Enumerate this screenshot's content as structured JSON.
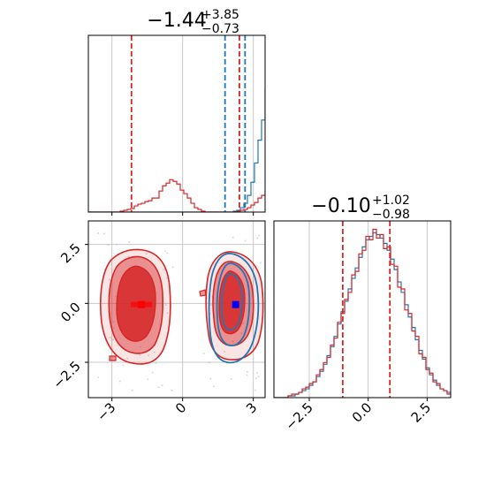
{
  "colors": {
    "blue": "#1f77b4",
    "red": "#d62728",
    "grid": "#c8c8c8",
    "axis": "#000000",
    "blue_marker": "#0000ff",
    "red_marker": "#ff0000"
  },
  "chart_data": [
    {
      "panel": "hist-x",
      "type": "step-histogram",
      "title_value": "−1.44",
      "title_plus": "+3.85",
      "title_minus": "−0.73",
      "xlim": [
        -4.0,
        3.5
      ],
      "grid": true,
      "bin_start": -4.0,
      "bin_width": 0.15,
      "series": [
        {
          "color": "blue",
          "counts": [
            0,
            0,
            0,
            0,
            0,
            0,
            0,
            0,
            0,
            0,
            0,
            0,
            0,
            0,
            0,
            0,
            0,
            0,
            0,
            0,
            0,
            0,
            0,
            0,
            0,
            0,
            0,
            0,
            0,
            0,
            0,
            0,
            0,
            0,
            0,
            0,
            0,
            0,
            0,
            0,
            0,
            1,
            2,
            5,
            10,
            19,
            34,
            56,
            82,
            105,
            140,
            175,
            192,
            168,
            130,
            92,
            60,
            34,
            14,
            6,
            2,
            1,
            0,
            0,
            0,
            0,
            0,
            0,
            0,
            0,
            0,
            0,
            0,
            0,
            0
          ]
        },
        {
          "color": "red",
          "counts": [
            0,
            0,
            0,
            0,
            0,
            0,
            0,
            0,
            0,
            1,
            2,
            3,
            4,
            7,
            9,
            10,
            12,
            13,
            16,
            16,
            24,
            30,
            33,
            37,
            35,
            32,
            25,
            21,
            16,
            10,
            5,
            3,
            1,
            0,
            0,
            0,
            0,
            0,
            0,
            0,
            0,
            0,
            1,
            2,
            3,
            5,
            8,
            11,
            16,
            19,
            24,
            26,
            27,
            25,
            21,
            16,
            11,
            7,
            4,
            2,
            1,
            0,
            0,
            0,
            0,
            0,
            0,
            0,
            0,
            0,
            0,
            0,
            0,
            0,
            0
          ]
        }
      ],
      "vlines": [
        {
          "color": "red",
          "x": -2.17
        },
        {
          "color": "red",
          "x": 2.41
        },
        {
          "color": "blue",
          "x": 1.8
        },
        {
          "color": "blue",
          "x": 2.65
        }
      ]
    },
    {
      "panel": "contour-xy",
      "type": "contour",
      "xlim": [
        -4.0,
        3.5
      ],
      "ylim": [
        -4.0,
        3.5
      ],
      "xticks": [
        -3,
        0,
        3
      ],
      "xtick_labels": [
        "−3",
        "0",
        "3"
      ],
      "yticks": [
        2.5,
        0.0,
        -2.5
      ],
      "ytick_labels": [
        "2.5",
        "0.0",
        "−2.5"
      ],
      "grid": true,
      "markers": [
        {
          "color": "red_marker",
          "x": -1.75,
          "y": -0.05
        },
        {
          "color": "blue_marker",
          "x": 2.25,
          "y": -0.05
        }
      ]
    },
    {
      "panel": "hist-y",
      "type": "step-histogram",
      "title_value": "−0.10",
      "title_plus": "+1.02",
      "title_minus": "−0.98",
      "xlim": [
        -4.0,
        3.5
      ],
      "xticks": [
        -2.5,
        0.0,
        2.5
      ],
      "xtick_labels": [
        "−2.5",
        "0.0",
        "2.5"
      ],
      "grid": true,
      "bin_start": -4.0,
      "bin_width": 0.15,
      "series": [
        {
          "color": "blue",
          "counts": [
            0,
            0,
            0,
            0,
            1,
            1,
            2,
            3,
            4,
            5,
            7,
            9,
            12,
            15,
            19,
            24,
            29,
            35,
            42,
            49,
            55,
            62,
            68,
            74,
            80,
            86,
            90,
            92,
            94,
            93,
            91,
            88,
            84,
            79,
            73,
            66,
            60,
            53,
            46,
            40,
            33,
            27,
            22,
            17,
            13,
            10,
            7,
            5,
            4,
            3,
            2,
            1,
            1
          ]
        },
        {
          "color": "red",
          "counts": [
            0,
            0,
            0,
            0,
            1,
            2,
            2,
            3,
            5,
            6,
            8,
            9,
            13,
            16,
            20,
            23,
            30,
            34,
            43,
            48,
            56,
            60,
            70,
            72,
            82,
            84,
            92,
            90,
            96,
            91,
            93,
            85,
            86,
            76,
            75,
            63,
            62,
            50,
            48,
            38,
            35,
            25,
            23,
            16,
            14,
            9,
            8,
            5,
            4,
            2,
            2,
            1,
            0
          ]
        }
      ],
      "vlines": [
        {
          "color": "red",
          "x": -1.08
        },
        {
          "color": "red",
          "x": 0.92
        }
      ]
    }
  ]
}
